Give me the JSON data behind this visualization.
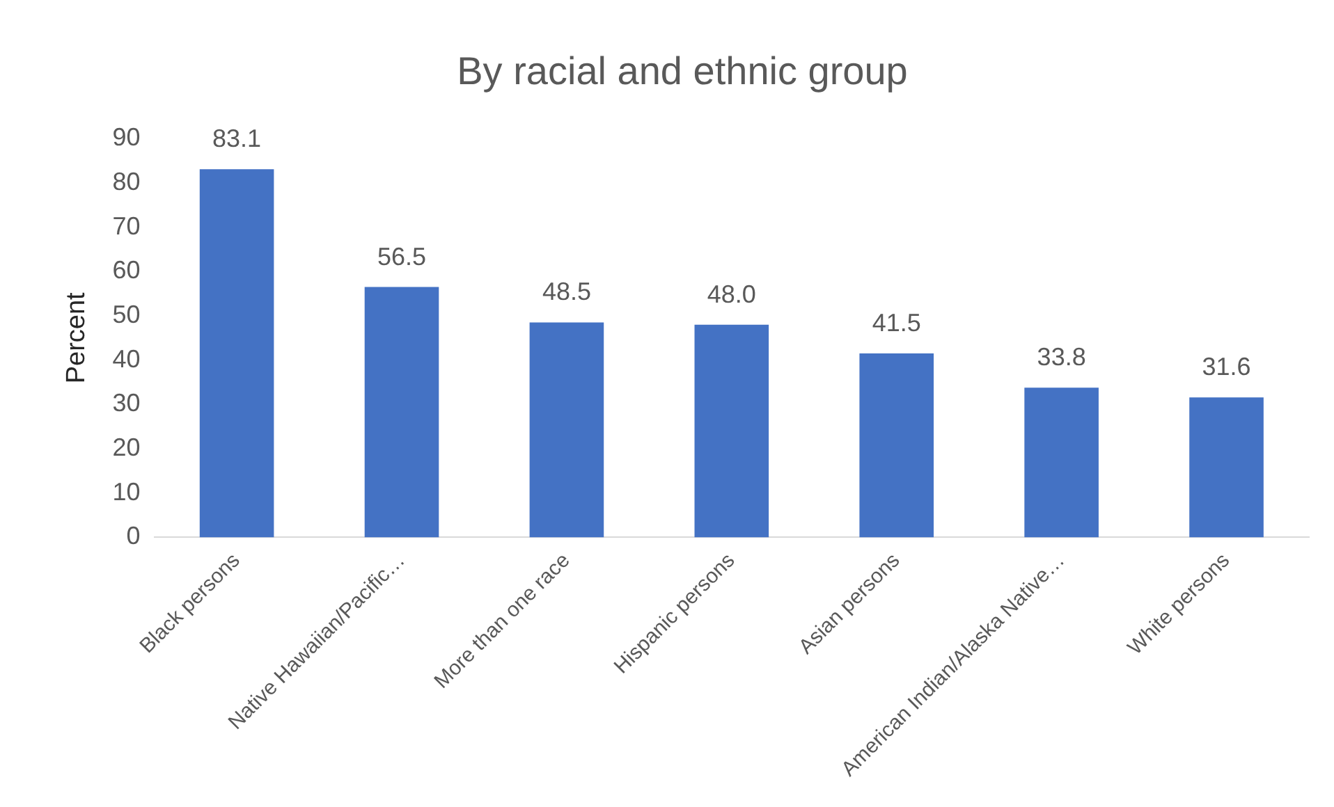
{
  "chart_data": {
    "type": "bar",
    "title": "By racial and ethnic group",
    "ylabel": "Percent",
    "categories": [
      "Black persons",
      "Native Hawaiian/Pacific…",
      "More than one race",
      "Hispanic persons",
      "Asian persons",
      "American Indian/Alaska Native…",
      "White persons"
    ],
    "values": [
      83.1,
      56.5,
      48.5,
      48.0,
      41.5,
      33.8,
      31.6
    ],
    "value_labels": [
      "83.1",
      "56.5",
      "48.5",
      "48.0",
      "41.5",
      "33.8",
      "31.6"
    ],
    "color": "#4472c4",
    "ylim": [
      0,
      90
    ],
    "yticks": [
      0,
      10,
      20,
      30,
      40,
      50,
      60,
      70,
      80,
      90
    ],
    "grid": false,
    "legend": false
  }
}
